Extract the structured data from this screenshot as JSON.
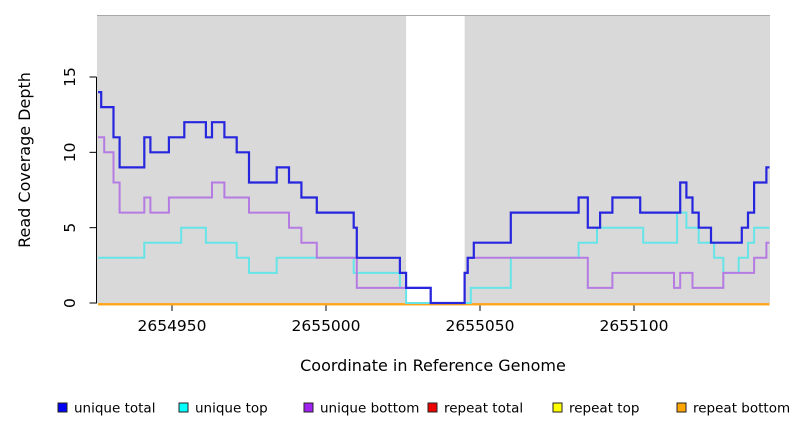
{
  "chart_data": {
    "type": "line",
    "subtype": "step-coverage",
    "title": "",
    "xlabel": "Coordinate in Reference Genome",
    "ylabel": "Read Coverage Depth",
    "x_ticks": [
      2654950,
      2655000,
      2655050,
      2655100
    ],
    "y_ticks": [
      0,
      5,
      10,
      15
    ],
    "xlim": [
      2654926,
      2655144
    ],
    "ylim": [
      0,
      19.1
    ],
    "grid": false,
    "panel_background": "#d9d9d9",
    "masked_gap_region": {
      "start": 2655026,
      "end": 2655045,
      "color": "#ffffff"
    },
    "legend_position": "bottom",
    "series": [
      {
        "name": "repeat total",
        "color": "#de2121",
        "legend_color": "#ee0000",
        "constant": 0,
        "points": [
          [
            2654926,
            0
          ]
        ]
      },
      {
        "name": "repeat top",
        "color": "#f2f224",
        "legend_color": "#ffff00",
        "constant": 0,
        "points": [
          [
            2654926,
            0
          ]
        ]
      },
      {
        "name": "repeat bottom",
        "color": "#ffa319",
        "legend_color": "#ffa500",
        "constant": 0,
        "points": [
          [
            2654926,
            0
          ]
        ]
      },
      {
        "name": "unique top",
        "color": "#66e5e8",
        "legend_color": "#00ffff",
        "points": [
          [
            2654926,
            3
          ],
          [
            2654941,
            4
          ],
          [
            2654953,
            5
          ],
          [
            2654961,
            4
          ],
          [
            2654971,
            3
          ],
          [
            2654975,
            2
          ],
          [
            2654984,
            3
          ],
          [
            2655009,
            2
          ],
          [
            2655024,
            1
          ],
          [
            2655026,
            0
          ],
          [
            2655047,
            1
          ],
          [
            2655060,
            3
          ],
          [
            2655082,
            4
          ],
          [
            2655088,
            5
          ],
          [
            2655103,
            4
          ],
          [
            2655114,
            6
          ],
          [
            2655117,
            5
          ],
          [
            2655121,
            4
          ],
          [
            2655126,
            3
          ],
          [
            2655129,
            2
          ],
          [
            2655134,
            3
          ],
          [
            2655137,
            4
          ],
          [
            2655139,
            5
          ]
        ]
      },
      {
        "name": "unique bottom",
        "color": "#b57be3",
        "legend_color": "#a021f0",
        "points": [
          [
            2654926,
            11
          ],
          [
            2654928,
            10
          ],
          [
            2654931,
            8
          ],
          [
            2654933,
            6
          ],
          [
            2654941,
            7
          ],
          [
            2654943,
            6
          ],
          [
            2654949,
            7
          ],
          [
            2654963,
            8
          ],
          [
            2654967,
            7
          ],
          [
            2654975,
            6
          ],
          [
            2654988,
            5
          ],
          [
            2654992,
            4
          ],
          [
            2654997,
            3
          ],
          [
            2655010,
            1
          ],
          [
            2655034,
            0
          ],
          [
            2655045,
            2
          ],
          [
            2655046,
            3
          ],
          [
            2655085,
            1
          ],
          [
            2655093,
            2
          ],
          [
            2655113,
            1
          ],
          [
            2655115,
            2
          ],
          [
            2655119,
            1
          ],
          [
            2655129,
            2
          ],
          [
            2655139,
            3
          ],
          [
            2655143,
            4
          ]
        ]
      },
      {
        "name": "unique total",
        "color": "#2626de",
        "legend_color": "#0000f5",
        "points": [
          [
            2654926,
            14
          ],
          [
            2654927,
            13
          ],
          [
            2654931,
            11
          ],
          [
            2654933,
            9
          ],
          [
            2654941,
            11
          ],
          [
            2654943,
            10
          ],
          [
            2654949,
            11
          ],
          [
            2654954,
            12
          ],
          [
            2654961,
            11
          ],
          [
            2654963,
            12
          ],
          [
            2654967,
            11
          ],
          [
            2654971,
            10
          ],
          [
            2654975,
            8
          ],
          [
            2654984,
            9
          ],
          [
            2654988,
            8
          ],
          [
            2654992,
            7
          ],
          [
            2654997,
            6
          ],
          [
            2655009,
            5
          ],
          [
            2655010,
            3
          ],
          [
            2655024,
            2
          ],
          [
            2655026,
            1
          ],
          [
            2655034,
            0
          ],
          [
            2655045,
            2
          ],
          [
            2655046,
            3
          ],
          [
            2655048,
            4
          ],
          [
            2655060,
            6
          ],
          [
            2655082,
            7
          ],
          [
            2655085,
            5
          ],
          [
            2655089,
            6
          ],
          [
            2655093,
            7
          ],
          [
            2655102,
            6
          ],
          [
            2655115,
            8
          ],
          [
            2655117,
            7
          ],
          [
            2655119,
            6
          ],
          [
            2655121,
            5
          ],
          [
            2655125,
            4
          ],
          [
            2655135,
            5
          ],
          [
            2655137,
            6
          ],
          [
            2655139,
            8
          ],
          [
            2655143,
            9
          ]
        ]
      }
    ],
    "legend": [
      {
        "label": "unique total",
        "color": "#0000f5"
      },
      {
        "label": "unique top",
        "color": "#00ffff"
      },
      {
        "label": "unique bottom",
        "color": "#a021f0"
      },
      {
        "label": "repeat total",
        "color": "#ee0000"
      },
      {
        "label": "repeat top",
        "color": "#ffff00"
      },
      {
        "label": "repeat bottom",
        "color": "#ffa500"
      }
    ]
  }
}
